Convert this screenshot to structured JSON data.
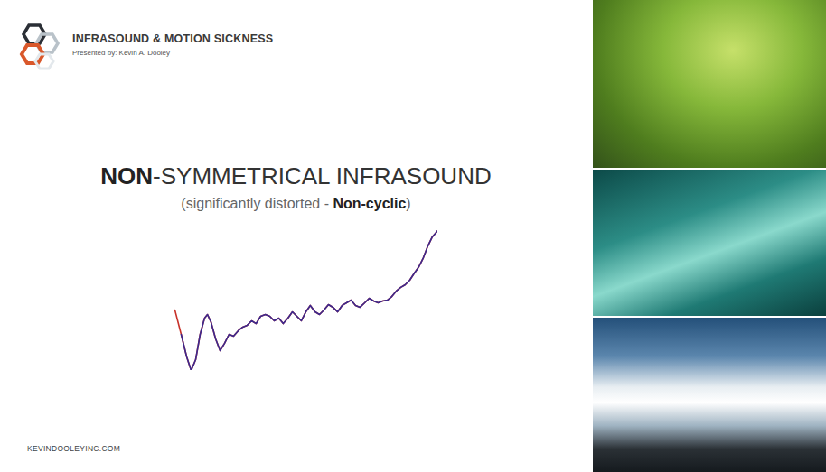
{
  "header": {
    "title": "INFRASOUND & MOTION SICKNESS",
    "presenter": "Presented by: Kevin A. Dooley"
  },
  "heading": [
    {
      "text": "NON",
      "bold": true
    },
    {
      "text": "-SYMMETRICAL INFRASOUND",
      "bold": false
    }
  ],
  "subheading": [
    {
      "text": "(significantly distorted - ",
      "bold": false
    },
    {
      "text": "Non-cyclic",
      "bold": true
    },
    {
      "text": ")",
      "bold": false
    }
  ],
  "footer": "KEVINDOOLEYINC.COM",
  "chart_data": {
    "type": "line",
    "x": [
      0,
      2.4,
      4.5,
      6.2,
      7.9,
      9.6,
      11.3,
      12.4,
      13.7,
      15.5,
      17.2,
      18.9,
      20.6,
      22.3,
      24.1,
      25.8,
      27.5,
      29.2,
      30.9,
      32.6,
      34.4,
      36.1,
      37.8,
      39.5,
      41.2,
      43,
      44.7,
      46.4,
      48.1,
      49.8,
      51.5,
      53.3,
      55,
      56.7,
      58.4,
      60.1,
      61.9,
      63.6,
      65.3,
      67,
      68.7,
      70.4,
      72.2,
      73.9,
      75.6,
      77.3,
      79,
      80.8,
      82.5,
      84.2,
      85.9,
      87.6,
      89.3,
      91.1,
      92.8,
      94.5,
      96.2,
      97.9,
      100
    ],
    "series": [
      {
        "color": "#c8322a",
        "values": [
          43.2,
          25.8,
          9.7,
          0,
          7.7,
          25.8,
          37.4,
          40,
          34.8,
          22.6,
          14.2,
          19.4,
          25.8,
          24.5,
          28.4,
          31,
          32.3,
          35.5,
          33.5,
          38.7,
          40,
          38.7,
          35.5,
          37.4,
          33.5,
          37.4,
          41.9,
          38.7,
          35.5,
          41.9,
          46.5,
          41.9,
          40,
          43.2,
          47.1,
          45.2,
          41.9,
          46.5,
          48.4,
          50.3,
          46.5,
          45.2,
          48.4,
          51.6,
          49.7,
          48.4,
          49.7,
          50.3,
          52.9,
          56.8,
          59.4,
          61.3,
          64.5,
          69.7,
          74.2,
          80.6,
          89,
          95.5,
          100
        ]
      },
      {
        "color": "#3b2a8f",
        "values": [
          null,
          25.8,
          9.7,
          0,
          7.7,
          25.8,
          37.4,
          40,
          34.8,
          22.6,
          14.2,
          19.4,
          25.8,
          24.5,
          28.4,
          31,
          32.3,
          35.5,
          33.5,
          38.7,
          40,
          38.7,
          35.5,
          37.4,
          33.5,
          37.4,
          41.9,
          38.7,
          35.5,
          41.9,
          46.5,
          41.9,
          40,
          43.2,
          47.1,
          45.2,
          41.9,
          46.5,
          48.4,
          50.3,
          46.5,
          45.2,
          48.4,
          51.6,
          49.7,
          48.4,
          49.7,
          50.3,
          52.9,
          56.8,
          59.4,
          61.3,
          64.5,
          69.7,
          74.2,
          80.6,
          89,
          95.5,
          100
        ]
      }
    ],
    "xlim": [
      0,
      100
    ],
    "ylim": [
      0,
      100
    ],
    "tick_labels": false,
    "grid": false
  }
}
